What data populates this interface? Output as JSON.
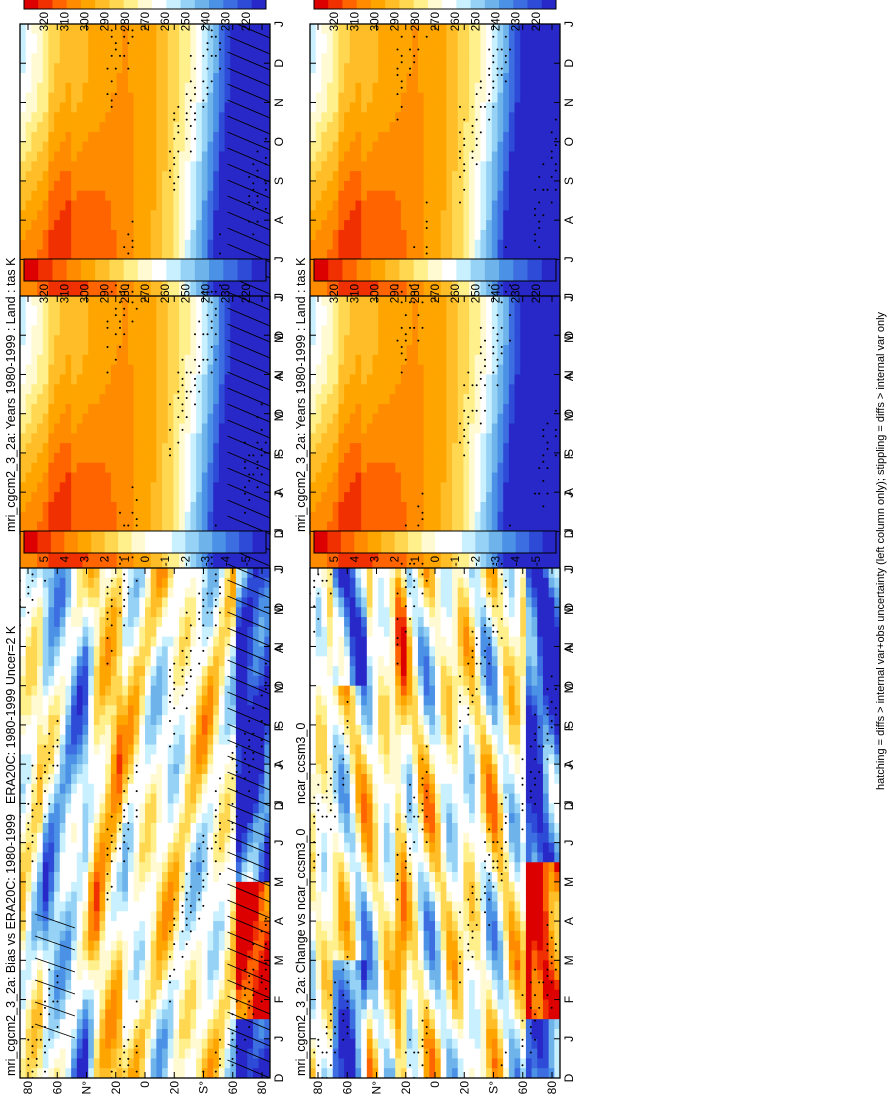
{
  "footnote": "hatching = diffs > internal var+obs uncertainty (left column only); stippling = diffs > internal var only",
  "colors": {
    "abs_scale": [
      "#dd0000",
      "#f03000",
      "#ff6400",
      "#ff8c00",
      "#ffa500",
      "#ffbe28",
      "#ffd750",
      "#fff08c",
      "#fffad2",
      "#ffffff",
      "#c8f0ff",
      "#96d2f5",
      "#6eb4eb",
      "#4b91e6",
      "#3c6ee1",
      "#2d4bd7",
      "#2828c8"
    ],
    "diff_scale": [
      "#dd0000",
      "#f03000",
      "#ff6400",
      "#ff8c00",
      "#ffa500",
      "#ffbe28",
      "#ffd750",
      "#fff08c",
      "#fffad2",
      "#ffffff",
      "#ffffff",
      "#c8f0ff",
      "#96d2f5",
      "#6eb4eb",
      "#4b91e6",
      "#3c6ee1",
      "#2d4bd7",
      "#2828c8"
    ]
  },
  "chart_data": [
    {
      "type": "heatmap",
      "title": "mri_cgcm2_3_2a: Years 1980-1999 : Land : tas K",
      "x_ticks": [
        "D",
        "J",
        "F",
        "M",
        "A",
        "M",
        "J",
        "J",
        "A",
        "S",
        "O",
        "N",
        "D",
        "J"
      ],
      "y_ticks": [
        "80",
        "60",
        "N°",
        "20",
        "0",
        "20",
        "S°",
        "60",
        "80"
      ],
      "colorbar": {
        "labels": [
          "320",
          "310",
          "300",
          "290",
          "280",
          "270",
          "260",
          "250",
          "240",
          "230",
          "220"
        ],
        "range": [
          215,
          325
        ]
      },
      "hatching": true,
      "field": "abs"
    },
    {
      "type": "heatmap",
      "title": "mri_cgcm2_3_2a: Years 1980-1999 : Land : tas K",
      "x_ticks": [
        "D",
        "J",
        "F",
        "M",
        "A",
        "M",
        "J",
        "J",
        "A",
        "S",
        "O",
        "N",
        "D",
        "J"
      ],
      "y_ticks": [
        "80",
        "60",
        "N°",
        "20",
        "0",
        "20",
        "S°",
        "60",
        "80"
      ],
      "colorbar": {
        "labels": [
          "320",
          "310",
          "300",
          "290",
          "280",
          "270",
          "260",
          "250",
          "240",
          "230",
          "220"
        ],
        "range": [
          215,
          325
        ]
      },
      "hatching": false,
      "field": "abs"
    },
    {
      "type": "heatmap",
      "title": "ERA20C: 1980-1999 Uncer=2 K",
      "x_ticks": [
        "D",
        "J",
        "F",
        "M",
        "A",
        "M",
        "J",
        "J",
        "A",
        "S",
        "O",
        "N",
        "D",
        "J"
      ],
      "y_ticks": [
        "80",
        "60",
        "N°",
        "20",
        "0",
        "20",
        "S°",
        "60",
        "80"
      ],
      "colorbar": {
        "labels": [
          "320",
          "310",
          "300",
          "290",
          "280",
          "270",
          "260",
          "250",
          "240",
          "230",
          "220"
        ],
        "range": [
          215,
          325
        ]
      },
      "hatching": true,
      "field": "abs"
    },
    {
      "type": "heatmap",
      "title": "ncar_ccsm3_0",
      "x_ticks": [
        "D",
        "J",
        "F",
        "M",
        "A",
        "M",
        "J",
        "J",
        "A",
        "S",
        "O",
        "N",
        "D",
        "J"
      ],
      "y_ticks": [
        "80",
        "60",
        "N°",
        "20",
        "0",
        "20",
        "S°",
        "60",
        "80"
      ],
      "colorbar": {
        "labels": [
          "320",
          "310",
          "300",
          "290",
          "280",
          "270",
          "260",
          "250",
          "240",
          "230",
          "220"
        ],
        "range": [
          215,
          325
        ]
      },
      "hatching": false,
      "field": "abs"
    },
    {
      "type": "heatmap",
      "title": "mri_cgcm2_3_2a: Bias vs ERA20C: 1980-1999",
      "x_ticks": [
        "D",
        "J",
        "F",
        "M",
        "A",
        "M",
        "J",
        "J",
        "A",
        "S",
        "O",
        "N",
        "D",
        "J"
      ],
      "y_ticks": [
        "80",
        "60",
        "N°",
        "20",
        "0",
        "20",
        "S°",
        "60",
        "80"
      ],
      "colorbar": {
        "labels": [
          "5",
          "4",
          "3",
          "2",
          "1",
          "0",
          "-1",
          "-2",
          "-3",
          "-4",
          "-5"
        ],
        "range": [
          -5.5,
          5.5
        ]
      },
      "hatching": true,
      "field": "bias"
    },
    {
      "type": "heatmap",
      "title": "mri_cgcm2_3_2a: Change vs ncar_ccsm3_0",
      "x_ticks": [
        "D",
        "J",
        "F",
        "M",
        "A",
        "M",
        "J",
        "J",
        "A",
        "S",
        "O",
        "N",
        "D",
        "J"
      ],
      "y_ticks": [
        "80",
        "60",
        "N°",
        "20",
        "0",
        "20",
        "S°",
        "60",
        "80"
      ],
      "colorbar": {
        "labels": [
          "5",
          "4",
          "3",
          "2",
          "1",
          "0",
          "-1",
          "-2",
          "-3",
          "-4",
          "-5"
        ],
        "range": [
          -5.5,
          5.5
        ]
      },
      "hatching": false,
      "field": "change"
    }
  ]
}
